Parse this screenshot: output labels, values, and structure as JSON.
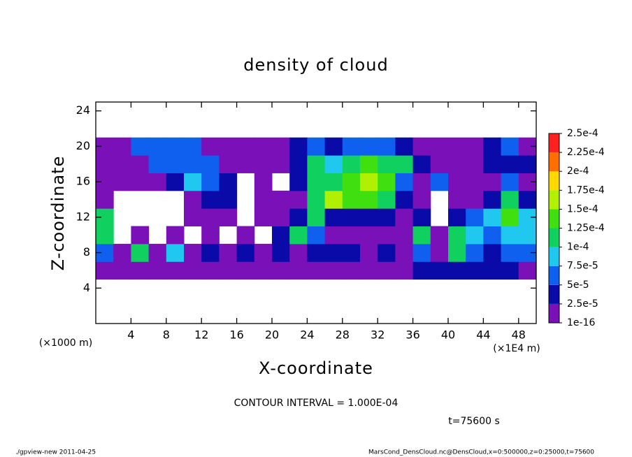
{
  "chart_data": {
    "type": "heatmap",
    "title": "density of cloud",
    "xlabel": "X-coordinate",
    "ylabel": "Z-coordinate",
    "x_unit_left": "(×1000 m)",
    "x_unit_right": "(×1E4 m)",
    "xlim": [
      0,
      50
    ],
    "ylim": [
      0,
      25
    ],
    "xticks": [
      4,
      8,
      12,
      16,
      20,
      24,
      28,
      32,
      36,
      40,
      44,
      48
    ],
    "yticks": [
      4,
      8,
      12,
      16,
      20,
      24
    ],
    "x_edges": [
      0,
      2,
      4,
      6,
      8,
      10,
      12,
      14,
      16,
      18,
      20,
      22,
      24,
      26,
      28,
      30,
      32,
      34,
      36,
      38,
      40,
      42,
      44,
      46,
      48,
      50
    ],
    "z_edges": [
      5,
      7,
      9,
      11,
      13,
      15,
      17,
      19,
      21
    ],
    "values": [
      [
        1e-05,
        1e-05,
        1e-05,
        1e-05,
        1e-05,
        1e-05,
        1e-05,
        1e-05,
        1e-05,
        1e-05,
        1e-05,
        1e-05,
        1e-05,
        1e-05,
        1e-05,
        1e-05,
        1e-05,
        1e-05,
        3e-05,
        3e-05,
        3e-05,
        3e-05,
        3e-05,
        3e-05,
        1e-05
      ],
      [
        6e-05,
        1e-05,
        0.00011,
        1e-05,
        9e-05,
        1e-05,
        3e-05,
        1e-05,
        3e-05,
        1e-05,
        3e-05,
        1e-05,
        3e-05,
        3e-05,
        3e-05,
        1e-05,
        3e-05,
        1e-05,
        6e-05,
        1e-05,
        0.00011,
        6e-05,
        3e-05,
        6e-05,
        6e-05
      ],
      [
        0.00011,
        null,
        1e-05,
        null,
        1e-05,
        null,
        1e-05,
        null,
        1e-05,
        null,
        3e-05,
        0.00011,
        6e-05,
        1e-05,
        1e-05,
        1e-05,
        1e-05,
        1e-05,
        0.00011,
        1e-05,
        0.00011,
        9e-05,
        6e-05,
        9e-05,
        9e-05
      ],
      [
        0.00011,
        null,
        null,
        null,
        null,
        1e-05,
        1e-05,
        1e-05,
        null,
        1e-05,
        1e-05,
        3e-05,
        0.00011,
        3e-05,
        3e-05,
        3e-05,
        3e-05,
        1e-05,
        3e-05,
        null,
        3e-05,
        6e-05,
        9e-05,
        0.00014,
        9e-05
      ],
      [
        1e-05,
        null,
        null,
        null,
        null,
        1e-05,
        3e-05,
        3e-05,
        null,
        1e-05,
        1e-05,
        1e-05,
        0.00011,
        0.00016,
        0.00014,
        0.00014,
        0.00011,
        3e-05,
        1e-05,
        null,
        1e-05,
        1e-05,
        3e-05,
        0.00011,
        3e-05
      ],
      [
        1e-05,
        1e-05,
        1e-05,
        1e-05,
        3e-05,
        9e-05,
        6e-05,
        3e-05,
        null,
        1e-05,
        null,
        3e-05,
        0.00011,
        0.00011,
        0.00014,
        0.00016,
        0.00014,
        6e-05,
        1e-05,
        6e-05,
        1e-05,
        1e-05,
        1e-05,
        6e-05,
        1e-05
      ],
      [
        1e-05,
        1e-05,
        1e-05,
        6e-05,
        6e-05,
        6e-05,
        6e-05,
        1e-05,
        1e-05,
        1e-05,
        1e-05,
        3e-05,
        0.00011,
        9e-05,
        0.00011,
        0.00014,
        0.00011,
        0.00011,
        3e-05,
        1e-05,
        1e-05,
        1e-05,
        3e-05,
        3e-05,
        3e-05
      ],
      [
        1e-05,
        1e-05,
        6e-05,
        6e-05,
        6e-05,
        6e-05,
        1e-05,
        1e-05,
        1e-05,
        1e-05,
        1e-05,
        3e-05,
        6e-05,
        3e-05,
        6e-05,
        6e-05,
        6e-05,
        3e-05,
        1e-05,
        1e-05,
        1e-05,
        1e-05,
        3e-05,
        6e-05,
        1e-05
      ]
    ],
    "colorbar": {
      "ticks": [
        {
          "value": 1e-16,
          "label": "1e-16"
        },
        {
          "value": 2.5e-05,
          "label": "2.5e-5"
        },
        {
          "value": 5e-05,
          "label": "5e-5"
        },
        {
          "value": 7.5e-05,
          "label": "7.5e-5"
        },
        {
          "value": 0.0001,
          "label": "1e-4"
        },
        {
          "value": 0.000125,
          "label": "1.25e-4"
        },
        {
          "value": 0.00015,
          "label": "1.5e-4"
        },
        {
          "value": 0.000175,
          "label": "1.75e-4"
        },
        {
          "value": 0.0002,
          "label": "2e-4"
        },
        {
          "value": 0.000225,
          "label": "2.25e-4"
        },
        {
          "value": 0.00025,
          "label": "2.5e-4"
        }
      ],
      "colors": [
        "#7a10b8",
        "#0a0aa8",
        "#1060f0",
        "#20c8f0",
        "#10d060",
        "#40e010",
        "#b0f000",
        "#ffd800",
        "#ff7000",
        "#ff2020"
      ]
    },
    "contour_interval": "CONTOUR INTERVAL = 1.000E-04",
    "time_label": "t=75600 s",
    "footer_left": "./gpview-new  2011-04-25",
    "footer_right": "MarsCond_DensCloud.nc@DensCloud,x=0:500000,z=0:25000,t=75600"
  }
}
